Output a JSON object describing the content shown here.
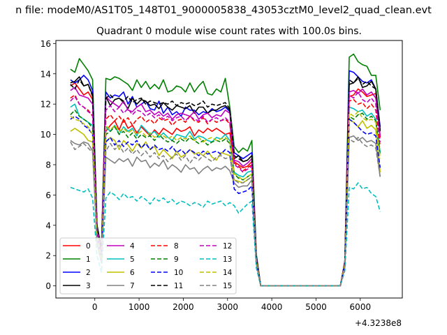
{
  "suptitle": "n file: modeM0/AS1T05_148T01_9000005838_43053cztM0_level2_quad_clean.evt",
  "chart_data": {
    "type": "line",
    "title": "Quadrant 0 module wise count rates with 100.0s bins.",
    "xlabel": "",
    "ylabel": "",
    "x_offset_label": "+4.3238e8",
    "xlim": [
      -880,
      6950
    ],
    "ylim": [
      -0.8,
      16.2
    ],
    "x_ticks": [
      0,
      1000,
      2000,
      3000,
      4000,
      5000,
      6000
    ],
    "y_ticks": [
      0,
      2,
      4,
      6,
      8,
      10,
      12,
      14,
      16
    ],
    "grid": false,
    "legend_position": "lower-left",
    "legend_columns": 4,
    "x": [
      -550,
      -450,
      -350,
      -250,
      -150,
      -50,
      50,
      150,
      250,
      350,
      450,
      550,
      650,
      750,
      850,
      950,
      1050,
      1150,
      1250,
      1350,
      1450,
      1550,
      1650,
      1750,
      1850,
      1950,
      2050,
      2150,
      2250,
      2350,
      2450,
      2550,
      2650,
      2750,
      2850,
      2950,
      3050,
      3150,
      3250,
      3350,
      3450,
      3550,
      3650,
      3750,
      5550,
      5650,
      5750,
      5850,
      5950,
      6050,
      6150,
      6250,
      6350,
      6450
    ],
    "series": [
      {
        "name": "0",
        "color": "#ff0000",
        "dash": "solid",
        "values": [
          13.2,
          13.4,
          13.0,
          12.6,
          12.8,
          12.3,
          4.0,
          2.2,
          10.2,
          10.6,
          10.9,
          10.3,
          11.0,
          10.4,
          10.6,
          10.1,
          10.5,
          10.2,
          9.9,
          10.3,
          10.0,
          10.4,
          10.2,
          10.0,
          10.4,
          10.2,
          10.3,
          10.5,
          9.9,
          10.3,
          10.1,
          10.4,
          10.2,
          10.4,
          10.2,
          10.0,
          10.1,
          8.2,
          8.0,
          7.8,
          7.9,
          8.2,
          2.0,
          0,
          0,
          1.5,
          12.5,
          12.6,
          13.0,
          12.8,
          12.5,
          12.6,
          12.7,
          9.8
        ]
      },
      {
        "name": "1",
        "color": "#008000",
        "dash": "solid",
        "values": [
          14.3,
          14.1,
          15.0,
          14.6,
          14.2,
          13.6,
          4.0,
          2.4,
          13.7,
          13.6,
          13.8,
          13.7,
          13.5,
          13.3,
          12.9,
          13.6,
          13.1,
          13.5,
          13.0,
          13.3,
          13.0,
          13.6,
          12.8,
          12.9,
          13.2,
          13.1,
          12.8,
          13.4,
          12.8,
          13.2,
          13.5,
          12.7,
          12.6,
          13.0,
          12.8,
          13.7,
          11.8,
          9.2,
          8.8,
          9.1,
          8.9,
          9.6,
          2.1,
          0,
          0,
          1.6,
          15.1,
          15.3,
          14.8,
          14.6,
          14.5,
          13.9,
          13.9,
          11.6
        ]
      },
      {
        "name": "2",
        "color": "#0000ff",
        "dash": "solid",
        "values": [
          13.6,
          13.4,
          13.6,
          13.9,
          13.6,
          12.9,
          4.0,
          2.3,
          12.8,
          12.4,
          12.6,
          12.5,
          12.8,
          12.0,
          12.5,
          11.8,
          12.0,
          12.2,
          11.7,
          11.6,
          12.2,
          11.4,
          11.8,
          11.3,
          11.5,
          11.2,
          11.8,
          11.6,
          11.6,
          11.3,
          11.5,
          11.4,
          11.7,
          11.5,
          11.6,
          11.8,
          11.5,
          8.8,
          8.6,
          8.4,
          8.6,
          8.8,
          2.0,
          0,
          0,
          1.6,
          14.2,
          14.1,
          13.8,
          13.5,
          13.4,
          13.6,
          13.0,
          10.5
        ]
      },
      {
        "name": "3",
        "color": "#000000",
        "dash": "solid",
        "values": [
          13.4,
          13.5,
          13.8,
          13.2,
          13.3,
          12.6,
          4.0,
          2.5,
          12.5,
          11.9,
          12.3,
          12.4,
          12.1,
          11.7,
          12.4,
          12.0,
          12.3,
          12.2,
          11.9,
          12.0,
          11.7,
          12.1,
          11.8,
          11.6,
          11.9,
          11.8,
          11.7,
          11.9,
          11.4,
          11.8,
          11.8,
          11.4,
          11.6,
          11.6,
          11.8,
          11.9,
          11.6,
          8.4,
          8.6,
          8.2,
          8.3,
          8.6,
          1.9,
          0,
          0,
          1.5,
          13.3,
          13.4,
          13.8,
          13.1,
          13.2,
          13.5,
          13.0,
          10.3
        ]
      },
      {
        "name": "4",
        "color": "#bf00bf",
        "dash": "solid",
        "values": [
          12.9,
          13.1,
          12.6,
          12.5,
          12.4,
          12.0,
          3.8,
          2.3,
          12.5,
          12.2,
          12.0,
          11.8,
          12.2,
          11.6,
          11.5,
          11.8,
          12.0,
          11.5,
          11.6,
          11.3,
          11.5,
          11.2,
          11.4,
          11.0,
          11.3,
          11.4,
          11.3,
          11.2,
          11.5,
          11.0,
          11.3,
          11.4,
          11.1,
          11.3,
          11.2,
          11.6,
          11.4,
          8.3,
          8.2,
          7.9,
          8.1,
          8.4,
          1.8,
          0,
          0,
          1.5,
          12.8,
          12.9,
          12.7,
          13.0,
          12.6,
          12.8,
          12.4,
          9.9
        ]
      },
      {
        "name": "5",
        "color": "#00bfbf",
        "dash": "solid",
        "values": [
          11.8,
          12.0,
          11.2,
          11.0,
          10.8,
          10.6,
          3.4,
          2.0,
          10.5,
          10.2,
          10.6,
          10.0,
          10.5,
          10.2,
          10.4,
          9.9,
          10.6,
          10.3,
          10.0,
          10.2,
          9.8,
          10.1,
          9.8,
          9.6,
          10.0,
          9.9,
          9.8,
          10.2,
          9.7,
          9.9,
          9.8,
          9.6,
          9.5,
          9.8,
          9.7,
          10.0,
          9.6,
          7.5,
          7.3,
          7.2,
          7.5,
          7.6,
          1.7,
          0,
          0,
          1.4,
          11.8,
          11.7,
          11.5,
          11.6,
          11.2,
          11.4,
          11.0,
          8.8
        ]
      },
      {
        "name": "6",
        "color": "#bfbf00",
        "dash": "solid",
        "values": [
          10.2,
          10.4,
          10.2,
          10.0,
          9.6,
          9.5,
          3.2,
          1.8,
          9.5,
          9.8,
          9.6,
          9.0,
          9.6,
          9.3,
          8.9,
          9.4,
          9.1,
          9.5,
          9.0,
          9.2,
          8.6,
          9.0,
          8.7,
          8.4,
          8.9,
          8.5,
          8.7,
          9.0,
          8.7,
          8.8,
          8.6,
          8.9,
          8.5,
          8.3,
          8.8,
          8.7,
          8.6,
          7.0,
          6.9,
          6.8,
          7.0,
          7.2,
          1.6,
          0,
          0,
          1.3,
          11.0,
          10.8,
          10.5,
          10.9,
          10.4,
          10.6,
          10.3,
          7.5
        ]
      },
      {
        "name": "7",
        "color": "#808080",
        "dash": "solid",
        "values": [
          9.6,
          9.4,
          9.3,
          9.5,
          9.4,
          8.9,
          2.9,
          1.5,
          8.5,
          8.3,
          8.1,
          8.4,
          8.2,
          8.4,
          7.9,
          8.5,
          8.2,
          8.3,
          7.8,
          8.1,
          7.9,
          8.3,
          7.7,
          8.0,
          7.8,
          7.5,
          8.0,
          7.7,
          7.8,
          7.4,
          7.7,
          7.9,
          7.6,
          7.8,
          7.7,
          7.9,
          7.6,
          6.8,
          6.5,
          6.6,
          6.6,
          7.0,
          1.5,
          0,
          0,
          1.3,
          9.8,
          9.9,
          9.6,
          9.8,
          9.5,
          9.6,
          9.4,
          7.2
        ]
      },
      {
        "name": "8",
        "color": "#ff0000",
        "dash": "dashed",
        "values": [
          12.4,
          12.6,
          12.0,
          11.8,
          11.6,
          11.2,
          3.6,
          2.1,
          11.0,
          11.3,
          10.9,
          11.2,
          10.8,
          11.1,
          10.6,
          11.0,
          11.2,
          10.8,
          11.0,
          10.7,
          11.1,
          10.9,
          11.0,
          10.6,
          10.9,
          11.0,
          10.8,
          11.2,
          10.9,
          10.8,
          11.1,
          10.7,
          11.0,
          10.8,
          10.9,
          11.0,
          10.7,
          8.1,
          7.9,
          7.6,
          7.8,
          8.0,
          1.8,
          0,
          0,
          1.5,
          12.2,
          12.3,
          12.0,
          12.1,
          11.7,
          12.0,
          11.6,
          9.2
        ]
      },
      {
        "name": "9",
        "color": "#008000",
        "dash": "dashed",
        "values": [
          11.3,
          11.6,
          11.2,
          11.0,
          10.8,
          10.4,
          3.4,
          1.9,
          10.0,
          10.2,
          10.5,
          10.0,
          10.2,
          9.8,
          10.1,
          9.7,
          10.0,
          9.8,
          9.9,
          9.6,
          10.0,
          9.7,
          9.5,
          9.6,
          9.4,
          9.7,
          9.5,
          9.8,
          9.6,
          9.4,
          9.6,
          9.3,
          9.5,
          9.6,
          9.5,
          9.7,
          9.4,
          7.4,
          7.1,
          7.0,
          7.2,
          7.4,
          1.7,
          0,
          0,
          1.4,
          11.2,
          11.0,
          11.3,
          11.4,
          11.0,
          11.2,
          10.9,
          8.6
        ]
      },
      {
        "name": "10",
        "color": "#0000ff",
        "dash": "dashed",
        "values": [
          11.0,
          11.2,
          11.0,
          10.6,
          10.4,
          10.0,
          3.2,
          1.9,
          9.5,
          9.8,
          9.3,
          9.6,
          9.2,
          9.5,
          9.3,
          9.6,
          9.1,
          9.4,
          9.0,
          9.3,
          9.0,
          9.1,
          8.9,
          9.2,
          8.8,
          9.0,
          8.7,
          9.0,
          8.8,
          8.6,
          8.9,
          8.7,
          8.8,
          8.9,
          8.7,
          9.0,
          8.8,
          6.4,
          6.1,
          6.2,
          6.3,
          6.6,
          1.5,
          0,
          0,
          1.3,
          11.0,
          10.8,
          10.5,
          10.2,
          10.0,
          10.1,
          9.9,
          7.8
        ]
      },
      {
        "name": "11",
        "color": "#000000",
        "dash": "dashed",
        "values": [
          13.3,
          13.0,
          13.6,
          13.2,
          13.3,
          12.5,
          3.9,
          2.4,
          12.4,
          12.6,
          12.3,
          12.4,
          12.2,
          12.5,
          12.1,
          12.3,
          12.4,
          12.0,
          12.2,
          12.1,
          12.0,
          12.1,
          12.0,
          12.2,
          11.9,
          12.1,
          12.0,
          12.1,
          11.9,
          12.0,
          12.2,
          11.8,
          12.0,
          11.9,
          12.0,
          12.1,
          11.7,
          8.6,
          8.4,
          8.2,
          8.3,
          8.6,
          1.9,
          0,
          0,
          1.6,
          13.6,
          13.4,
          13.7,
          13.3,
          13.5,
          13.2,
          13.0,
          10.2
        ]
      },
      {
        "name": "12",
        "color": "#bf00bf",
        "dash": "dashed",
        "values": [
          12.2,
          12.5,
          12.0,
          11.8,
          11.5,
          11.3,
          3.6,
          2.1,
          11.6,
          11.9,
          11.5,
          11.8,
          11.4,
          11.7,
          11.3,
          11.6,
          11.5,
          11.2,
          11.4,
          11.1,
          11.3,
          11.0,
          11.2,
          10.9,
          11.1,
          11.2,
          10.9,
          11.2,
          11.0,
          10.9,
          11.2,
          10.8,
          11.0,
          11.1,
          10.9,
          11.1,
          10.8,
          8.0,
          7.8,
          7.5,
          7.7,
          7.9,
          1.8,
          0,
          0,
          1.5,
          12.6,
          12.4,
          12.8,
          12.3,
          12.1,
          12.4,
          12.0,
          9.5
        ]
      },
      {
        "name": "13",
        "color": "#00bfbf",
        "dash": "dashed",
        "values": [
          6.5,
          6.4,
          6.3,
          6.2,
          6.4,
          5.8,
          2.0,
          0.9,
          5.8,
          6.2,
          6.0,
          5.7,
          6.1,
          5.8,
          5.9,
          5.6,
          5.9,
          5.7,
          5.4,
          5.8,
          5.6,
          5.8,
          5.5,
          5.7,
          5.4,
          5.6,
          5.5,
          5.3,
          5.5,
          5.4,
          5.2,
          5.6,
          5.4,
          5.5,
          5.6,
          5.3,
          5.5,
          5.3,
          4.8,
          5.1,
          5.4,
          5.6,
          1.2,
          0,
          0,
          1.0,
          6.5,
          6.4,
          6.8,
          6.4,
          6.5,
          6.1,
          5.9,
          4.9
        ]
      },
      {
        "name": "14",
        "color": "#bfbf00",
        "dash": "dashed",
        "values": [
          11.2,
          11.0,
          10.9,
          10.7,
          10.5,
          10.0,
          3.3,
          1.8,
          10.6,
          10.3,
          10.6,
          10.2,
          10.4,
          10.1,
          10.3,
          10.0,
          10.2,
          9.9,
          10.1,
          9.8,
          10.0,
          9.9,
          9.7,
          9.9,
          9.6,
          9.8,
          9.7,
          9.9,
          9.6,
          9.8,
          9.5,
          9.7,
          9.8,
          9.6,
          9.7,
          9.8,
          9.5,
          7.4,
          7.2,
          7.0,
          7.2,
          7.4,
          1.7,
          0,
          0,
          1.4,
          11.4,
          11.2,
          11.5,
          11.1,
          10.9,
          11.0,
          10.8,
          8.4
        ]
      },
      {
        "name": "15",
        "color": "#808080",
        "dash": "dashed",
        "values": [
          9.5,
          9.0,
          9.2,
          9.4,
          9.1,
          8.8,
          2.8,
          1.5,
          8.9,
          9.4,
          9.0,
          9.3,
          8.8,
          9.1,
          8.7,
          9.0,
          8.6,
          8.9,
          8.5,
          8.8,
          8.4,
          8.6,
          8.2,
          8.5,
          8.7,
          8.3,
          8.6,
          8.1,
          8.5,
          8.3,
          8.6,
          8.4,
          8.2,
          8.5,
          8.6,
          8.4,
          8.5,
          7.0,
          6.8,
          6.8,
          7.0,
          7.2,
          1.5,
          0,
          0,
          1.2,
          9.7,
          9.5,
          9.8,
          9.4,
          9.2,
          9.3,
          9.1,
          7.2
        ]
      }
    ]
  }
}
